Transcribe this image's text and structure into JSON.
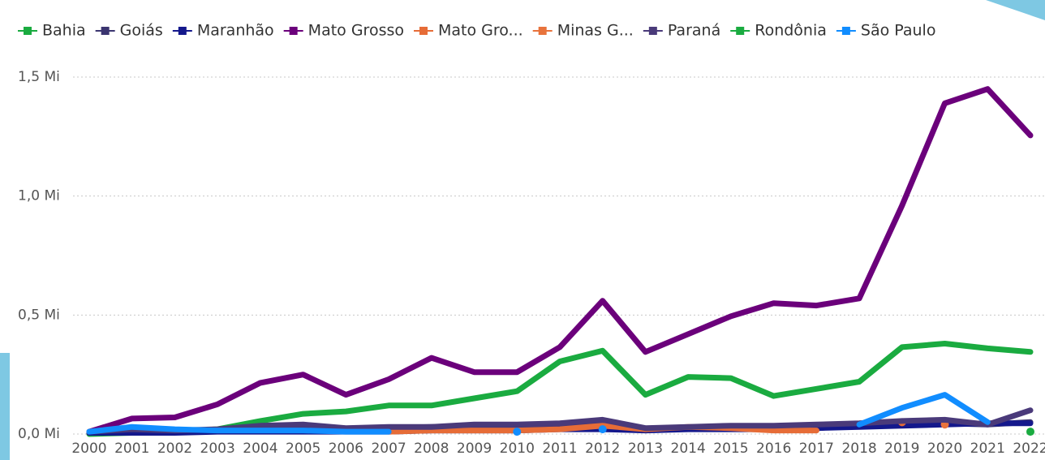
{
  "chart_data": {
    "type": "line",
    "categories": [
      "2000",
      "2001",
      "2002",
      "2003",
      "2004",
      "2005",
      "2006",
      "2007",
      "2008",
      "2009",
      "2010",
      "2011",
      "2012",
      "2013",
      "2014",
      "2015",
      "2016",
      "2017",
      "2018",
      "2019",
      "2020",
      "2021",
      "2022"
    ],
    "ylim": [
      0,
      1.5
    ],
    "yticks": [
      {
        "value": 0,
        "label": "0,0 Mi"
      },
      {
        "value": 0.5,
        "label": "0,5 Mi"
      },
      {
        "value": 1.0,
        "label": "1,0 Mi"
      },
      {
        "value": 1.5,
        "label": "1,5 Mi"
      }
    ],
    "grid": true,
    "legend": "top",
    "series": [
      {
        "name": "Bahia",
        "color": "#1aab40",
        "values": [
          0.0,
          0.005,
          0.01,
          0.02,
          0.055,
          0.085,
          0.095,
          0.12,
          0.12,
          0.15,
          0.18,
          0.305,
          0.35,
          0.165,
          0.24,
          0.235,
          0.16,
          0.19,
          0.22,
          0.365,
          0.38,
          0.36,
          0.345
        ]
      },
      {
        "name": "Goiás",
        "color": "#3b3570",
        "values": [
          0.005,
          0.01,
          0.01,
          0.015,
          0.02,
          0.025,
          0.02,
          0.025,
          0.03,
          0.03,
          0.03,
          0.03,
          0.04,
          0.02,
          0.025,
          0.03,
          0.03,
          0.035,
          0.035,
          0.04,
          0.045,
          0.04,
          0.05
        ]
      },
      {
        "name": "Maranhão",
        "color": "#14188c",
        "values": [
          0.005,
          0.005,
          0.005,
          0.01,
          0.01,
          0.01,
          0.01,
          0.01,
          0.015,
          0.015,
          0.015,
          0.02,
          0.02,
          0.015,
          0.02,
          0.02,
          0.02,
          0.025,
          0.03,
          0.035,
          0.04,
          0.045,
          0.045
        ]
      },
      {
        "name": "Mato Grosso",
        "color": "#6b007b",
        "values": [
          0.01,
          0.065,
          0.07,
          0.125,
          0.215,
          0.25,
          0.165,
          0.23,
          0.32,
          0.26,
          0.26,
          0.365,
          0.56,
          0.345,
          0.42,
          0.495,
          0.55,
          0.54,
          0.57,
          0.96,
          1.39,
          1.45,
          1.255
        ]
      },
      {
        "name": "Mato Gro...",
        "color": "#e66c37",
        "values": [
          null,
          null,
          null,
          null,
          null,
          null,
          null,
          0.01,
          0.015,
          0.015,
          0.015,
          0.02,
          0.035,
          0.02,
          0.03,
          0.025,
          0.015,
          0.015,
          null,
          0.05,
          null,
          null,
          null
        ]
      },
      {
        "name": "Minas G...",
        "color": "#e8733c",
        "values": [
          null,
          null,
          null,
          null,
          null,
          null,
          null,
          null,
          null,
          null,
          null,
          null,
          null,
          null,
          null,
          null,
          null,
          null,
          null,
          null,
          0.04,
          null,
          null
        ]
      },
      {
        "name": "Paraná",
        "color": "#4a3a7a",
        "values": [
          0.01,
          0.02,
          0.015,
          0.02,
          0.035,
          0.04,
          0.025,
          0.03,
          0.03,
          0.04,
          0.04,
          0.045,
          0.06,
          0.025,
          0.03,
          0.035,
          0.035,
          0.04,
          0.045,
          0.055,
          0.06,
          0.04,
          0.1
        ]
      },
      {
        "name": "Rondônia",
        "color": "#1aab40",
        "values": [
          null,
          null,
          null,
          null,
          null,
          null,
          null,
          null,
          null,
          null,
          null,
          null,
          null,
          null,
          null,
          null,
          null,
          null,
          null,
          null,
          null,
          null,
          0.01
        ]
      },
      {
        "name": "São Paulo",
        "color": "#118dff",
        "values": [
          0.01,
          0.03,
          0.02,
          0.015,
          0.015,
          0.015,
          0.01,
          0.01,
          null,
          null,
          0.01,
          null,
          0.02,
          null,
          null,
          null,
          null,
          null,
          0.04,
          0.11,
          0.165,
          0.05,
          null
        ]
      }
    ]
  }
}
